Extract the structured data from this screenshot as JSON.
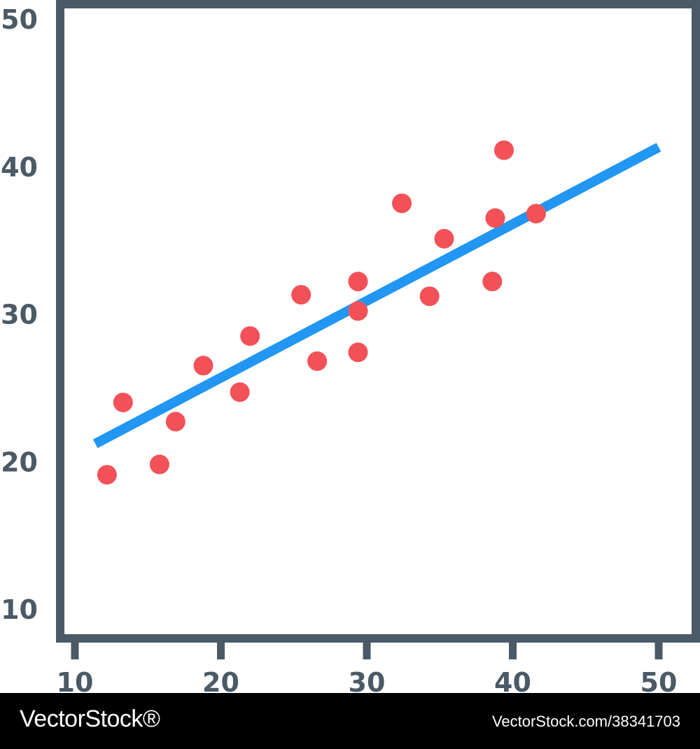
{
  "chart_data": {
    "type": "scatter",
    "title": "",
    "xlabel": "",
    "ylabel": "",
    "xlim": [
      10,
      50
    ],
    "ylim": [
      10,
      50
    ],
    "x_ticks": [
      10,
      20,
      30,
      40,
      50
    ],
    "y_ticks": [
      10,
      20,
      30,
      40,
      50
    ],
    "x_tick_labels": [
      "10",
      "20",
      "30",
      "40",
      "50"
    ],
    "y_tick_labels": [
      "10",
      "20",
      "30",
      "40",
      "50"
    ],
    "grid": false,
    "points": [
      {
        "x": 12.2,
        "y": 19.1
      },
      {
        "x": 13.3,
        "y": 24.0
      },
      {
        "x": 15.8,
        "y": 19.8
      },
      {
        "x": 16.9,
        "y": 22.7
      },
      {
        "x": 18.8,
        "y": 26.5
      },
      {
        "x": 21.3,
        "y": 24.7
      },
      {
        "x": 22.0,
        "y": 28.5
      },
      {
        "x": 25.5,
        "y": 31.3
      },
      {
        "x": 26.6,
        "y": 26.8
      },
      {
        "x": 29.4,
        "y": 32.2
      },
      {
        "x": 29.4,
        "y": 30.2
      },
      {
        "x": 29.4,
        "y": 27.4
      },
      {
        "x": 32.4,
        "y": 37.5
      },
      {
        "x": 34.3,
        "y": 31.2
      },
      {
        "x": 35.3,
        "y": 35.1
      },
      {
        "x": 38.6,
        "y": 32.2
      },
      {
        "x": 38.8,
        "y": 36.5
      },
      {
        "x": 39.4,
        "y": 41.1
      },
      {
        "x": 41.6,
        "y": 36.8
      }
    ],
    "trend_line": {
      "x1": 11.4,
      "y1": 21.2,
      "x2": 50.0,
      "y2": 41.3
    },
    "colors": {
      "points": "#f25158",
      "trend_line": "#2196f3",
      "axes": "#4a5a66",
      "background": "#ffffff"
    }
  },
  "watermark": {
    "brand": "VectorStock®",
    "url": "VectorStock.com/38341703"
  }
}
